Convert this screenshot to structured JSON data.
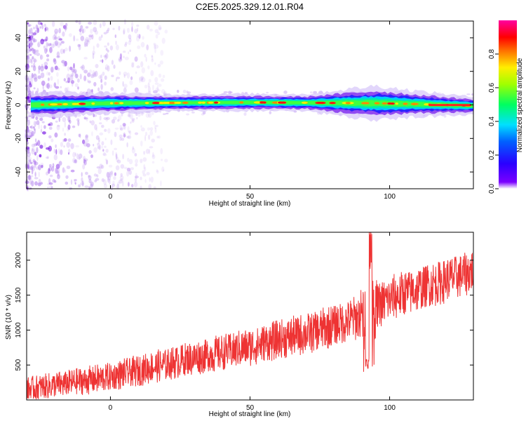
{
  "title": "C2E5.2025.329.12.01.R04",
  "colorbar": {
    "label": "Normalized spectral amplitude",
    "ticks": [
      "0.0",
      "0.2",
      "0.4",
      "0.6",
      "0.8"
    ],
    "range": [
      0,
      1
    ]
  },
  "chart_data": [
    {
      "type": "heatmap",
      "name": "spectrogram",
      "xlabel": "Height of straight line (km)",
      "ylabel": "Frequency (Hz)",
      "xlim": [
        -30,
        130
      ],
      "ylim": [
        -50,
        50
      ],
      "xticks": [
        "0",
        "50",
        "100"
      ],
      "yticks": [
        "-40",
        "-20",
        "0",
        "20",
        "40"
      ],
      "colormap": "rainbow (purple → blue → cyan → green → yellow → red → magenta)",
      "ridge_frequency_hz": [
        {
          "x": -28,
          "f": 0.0
        },
        {
          "x": 0,
          "f": 1.0
        },
        {
          "x": 50,
          "f": 1.5
        },
        {
          "x": 95,
          "f": 1.0
        },
        {
          "x": 110,
          "f": 0.5
        },
        {
          "x": 130,
          "f": -0.5
        }
      ],
      "ridge_halfwidth_hz": [
        {
          "x": -28,
          "w": 3
        },
        {
          "x": 20,
          "w": 2
        },
        {
          "x": 70,
          "w": 2
        },
        {
          "x": 95,
          "w": 4
        },
        {
          "x": 110,
          "w": 3
        },
        {
          "x": 130,
          "w": 2
        }
      ],
      "noise_region_x": [
        -30,
        10
      ]
    },
    {
      "type": "line",
      "name": "snr",
      "xlabel": "Height of straight line (km)",
      "ylabel": "SNR (10 * v/v)",
      "xlim": [
        -30,
        130
      ],
      "ylim": [
        0,
        2400
      ],
      "xticks": [
        "0",
        "50",
        "100"
      ],
      "yticks": [
        "500",
        "1000",
        "1500",
        "2000"
      ],
      "series_color": "#ee3333",
      "trend": [
        {
          "x": -30,
          "y": 150
        },
        {
          "x": 0,
          "y": 330
        },
        {
          "x": 25,
          "y": 560
        },
        {
          "x": 50,
          "y": 760
        },
        {
          "x": 75,
          "y": 1000
        },
        {
          "x": 90,
          "y": 1200
        },
        {
          "x": 100,
          "y": 1450
        },
        {
          "x": 115,
          "y": 1650
        },
        {
          "x": 130,
          "y": 1850
        }
      ],
      "spread": [
        {
          "x": -30,
          "s": 180
        },
        {
          "x": 50,
          "s": 280
        },
        {
          "x": 100,
          "s": 340
        },
        {
          "x": 130,
          "s": 330
        }
      ],
      "features": [
        {
          "x": 93,
          "y": 2400,
          "type": "spike"
        },
        {
          "x": 92,
          "y": 450,
          "type": "dip"
        }
      ]
    }
  ]
}
